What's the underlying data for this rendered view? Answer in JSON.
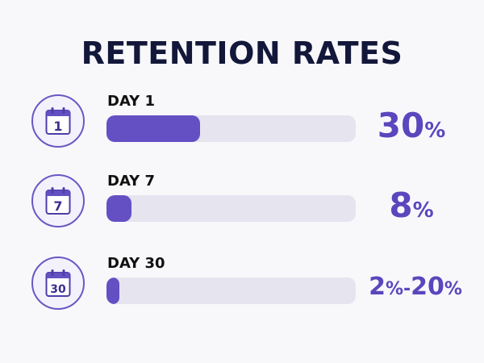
{
  "chart_data": {
    "type": "bar",
    "title": "RETENTION RATES",
    "categories": [
      "DAY 1",
      "DAY 7",
      "DAY 30"
    ],
    "values": [
      30,
      8,
      2
    ],
    "value_labels": [
      [
        "30",
        "%"
      ],
      [
        "8",
        "%"
      ],
      [
        "2",
        "%-",
        "20",
        "%"
      ]
    ],
    "icon_numbers": [
      "1",
      "7",
      "30"
    ],
    "ylim": [
      0,
      80
    ],
    "colors": {
      "fill": "#6450c3",
      "track": "#e5e4ef",
      "label": "#5b46bd"
    },
    "icons": [
      "calendar-icon",
      "calendar-icon",
      "calendar-icon"
    ]
  }
}
